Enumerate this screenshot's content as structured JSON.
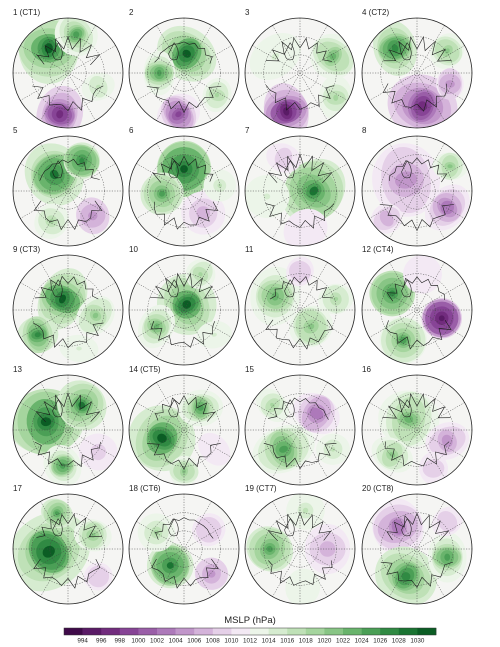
{
  "chart_data": {
    "type": "heatmap",
    "projection": "north-polar-stereographic",
    "grid_lines": "dotted lat/lon grid",
    "panels": [
      {
        "label": "1 (CT1)",
        "blobs": [
          [
            -0.35,
            -0.45,
            0.55,
            1030
          ],
          [
            0.15,
            -0.7,
            0.35,
            1024
          ],
          [
            -0.15,
            0.75,
            0.45,
            996
          ],
          [
            0.55,
            0.25,
            0.3,
            1016
          ]
        ]
      },
      {
        "label": "2",
        "blobs": [
          [
            0.05,
            -0.35,
            0.5,
            1030
          ],
          [
            -0.45,
            0.0,
            0.35,
            1024
          ],
          [
            -0.1,
            0.75,
            0.4,
            998
          ],
          [
            0.6,
            0.4,
            0.3,
            1018
          ]
        ]
      },
      {
        "label": "3",
        "blobs": [
          [
            -0.25,
            0.7,
            0.45,
            994
          ],
          [
            0.6,
            -0.3,
            0.4,
            1022
          ],
          [
            0.65,
            0.45,
            0.35,
            1018
          ],
          [
            -0.45,
            -0.3,
            0.45,
            1014
          ]
        ]
      },
      {
        "label": "4 (CT2)",
        "blobs": [
          [
            0.1,
            0.6,
            0.55,
            996
          ],
          [
            -0.4,
            -0.45,
            0.45,
            1026
          ],
          [
            0.55,
            -0.4,
            0.35,
            1020
          ],
          [
            0.6,
            0.2,
            0.3,
            1004
          ]
        ]
      },
      {
        "label": "5",
        "blobs": [
          [
            -0.25,
            -0.3,
            0.6,
            1028
          ],
          [
            0.25,
            -0.55,
            0.4,
            1026
          ],
          [
            0.45,
            0.45,
            0.35,
            1004
          ],
          [
            -0.3,
            0.55,
            0.3,
            1018
          ]
        ]
      },
      {
        "label": "6",
        "blobs": [
          [
            0.0,
            -0.4,
            0.6,
            1030
          ],
          [
            -0.4,
            0.05,
            0.4,
            1024
          ],
          [
            0.35,
            0.4,
            0.35,
            1006
          ],
          [
            0.65,
            -0.1,
            0.25,
            1016
          ]
        ]
      },
      {
        "label": "7",
        "blobs": [
          [
            0.25,
            0.0,
            0.55,
            1028
          ],
          [
            -0.6,
            0.1,
            0.35,
            1014
          ],
          [
            0.1,
            0.7,
            0.35,
            1010
          ],
          [
            -0.3,
            -0.6,
            0.3,
            1008
          ]
        ]
      },
      {
        "label": "8",
        "blobs": [
          [
            -0.2,
            -0.2,
            0.6,
            1004
          ],
          [
            0.55,
            0.3,
            0.4,
            1002
          ],
          [
            0.6,
            -0.45,
            0.3,
            1020
          ],
          [
            -0.55,
            0.5,
            0.3,
            1006
          ]
        ]
      },
      {
        "label": "9 (CT3)",
        "blobs": [
          [
            -0.1,
            -0.2,
            0.5,
            1030
          ],
          [
            -0.55,
            0.45,
            0.35,
            1026
          ],
          [
            0.5,
            0.1,
            0.35,
            1020
          ],
          [
            0.2,
            0.7,
            0.3,
            1014
          ]
        ]
      },
      {
        "label": "10",
        "blobs": [
          [
            0.05,
            -0.1,
            0.5,
            1030
          ],
          [
            -0.5,
            0.3,
            0.35,
            1022
          ],
          [
            0.55,
            0.45,
            0.3,
            1014
          ],
          [
            0.3,
            -0.65,
            0.3,
            1018
          ]
        ]
      },
      {
        "label": "11",
        "blobs": [
          [
            -0.45,
            -0.25,
            0.5,
            1022
          ],
          [
            0.2,
            0.3,
            0.45,
            1020
          ],
          [
            0.0,
            -0.7,
            0.3,
            1008
          ],
          [
            0.65,
            -0.2,
            0.3,
            1018
          ]
        ]
      },
      {
        "label": "12 (CT4)",
        "blobs": [
          [
            0.45,
            0.15,
            0.45,
            994
          ],
          [
            -0.45,
            -0.3,
            0.45,
            1026
          ],
          [
            -0.25,
            0.55,
            0.4,
            1024
          ],
          [
            0.1,
            -0.65,
            0.3,
            1010
          ]
        ]
      },
      {
        "label": "13",
        "blobs": [
          [
            -0.4,
            -0.15,
            0.65,
            1030
          ],
          [
            0.25,
            -0.45,
            0.4,
            1028
          ],
          [
            0.55,
            0.4,
            0.3,
            1008
          ],
          [
            -0.1,
            0.65,
            0.35,
            1024
          ]
        ]
      },
      {
        "label": "14 (CT5)",
        "blobs": [
          [
            -0.4,
            0.15,
            0.55,
            1030
          ],
          [
            0.3,
            -0.4,
            0.35,
            1024
          ],
          [
            0.55,
            0.35,
            0.3,
            1010
          ],
          [
            0.0,
            0.75,
            0.3,
            1020
          ]
        ]
      },
      {
        "label": "15",
        "blobs": [
          [
            -0.3,
            0.35,
            0.5,
            1024
          ],
          [
            0.3,
            -0.3,
            0.4,
            1002
          ],
          [
            0.6,
            0.35,
            0.3,
            1016
          ],
          [
            -0.5,
            -0.45,
            0.3,
            1018
          ]
        ]
      },
      {
        "label": "16",
        "blobs": [
          [
            -0.15,
            -0.2,
            0.5,
            1022
          ],
          [
            0.55,
            0.2,
            0.35,
            1004
          ],
          [
            -0.45,
            0.45,
            0.35,
            1020
          ],
          [
            0.3,
            0.7,
            0.3,
            1008
          ]
        ]
      },
      {
        "label": "17",
        "blobs": [
          [
            -0.35,
            0.05,
            0.7,
            1030
          ],
          [
            0.45,
            -0.25,
            0.35,
            1020
          ],
          [
            0.55,
            0.5,
            0.3,
            1008
          ],
          [
            -0.2,
            -0.65,
            0.3,
            1024
          ]
        ]
      },
      {
        "label": "18 (CT6)",
        "blobs": [
          [
            -0.25,
            0.3,
            0.5,
            1028
          ],
          [
            0.45,
            -0.35,
            0.35,
            1008
          ],
          [
            0.5,
            0.45,
            0.3,
            1004
          ],
          [
            -0.5,
            -0.3,
            0.3,
            1018
          ]
        ]
      },
      {
        "label": "19 (CT7)",
        "blobs": [
          [
            -0.55,
            0.0,
            0.45,
            1024
          ],
          [
            0.5,
            0.0,
            0.4,
            1006
          ],
          [
            0.1,
            -0.7,
            0.3,
            1016
          ],
          [
            0.05,
            0.7,
            0.3,
            1012
          ]
        ]
      },
      {
        "label": "20 (CT8)",
        "blobs": [
          [
            -0.35,
            -0.4,
            0.45,
            1002
          ],
          [
            -0.2,
            0.5,
            0.5,
            1026
          ],
          [
            0.55,
            0.15,
            0.4,
            1024
          ],
          [
            0.55,
            -0.5,
            0.3,
            1008
          ]
        ]
      }
    ],
    "colorbar": {
      "title": "MSLP (hPa)",
      "ticks": [
        994,
        996,
        998,
        1000,
        1002,
        1004,
        1006,
        1008,
        1010,
        1012,
        1014,
        1016,
        1018,
        1020,
        1022,
        1024,
        1026,
        1028,
        1030
      ],
      "range": [
        992,
        1032
      ],
      "colors": [
        "#3f0a49",
        "#5a1b66",
        "#722c7e",
        "#874496",
        "#9a5ea8",
        "#ad79ba",
        "#c196ca",
        "#d4b3da",
        "#e5d0e8",
        "#f3e9f4",
        "#ecf5e9",
        "#d6ecd0",
        "#bfe1b7",
        "#a5d59e",
        "#88c585",
        "#69b46c",
        "#4b9f56",
        "#308a43",
        "#1a7432",
        "#0b5d24"
      ]
    }
  }
}
